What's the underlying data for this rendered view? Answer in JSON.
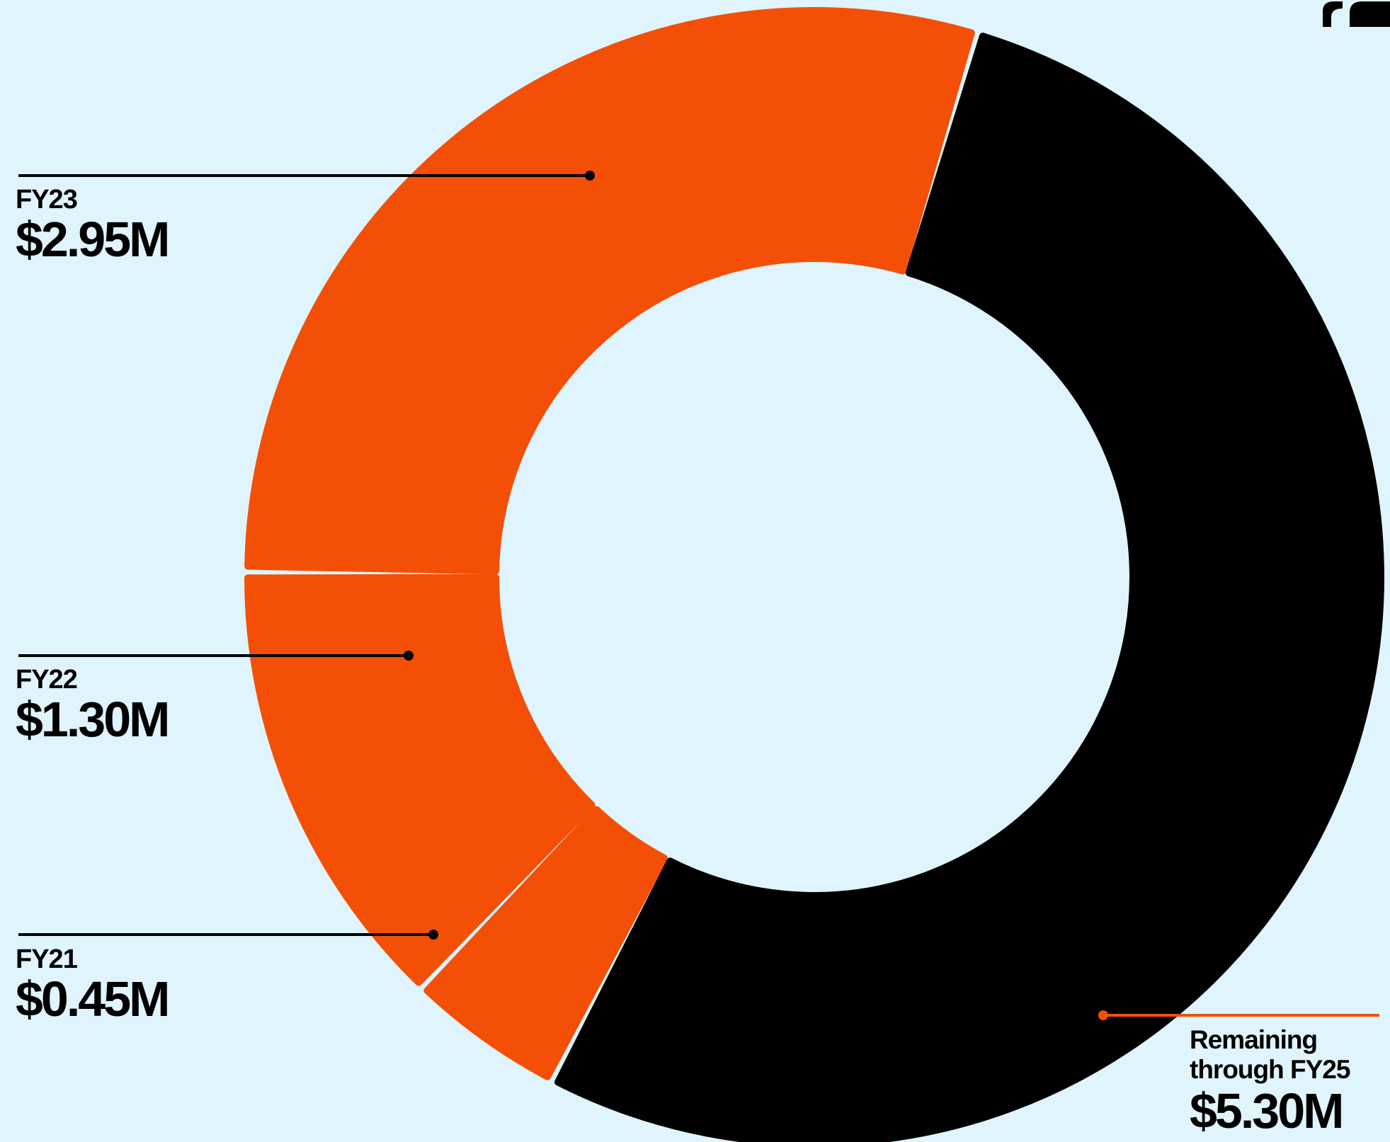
{
  "colors": {
    "background": "#dff4fd",
    "funded": "#f44f06",
    "remaining": "#000000",
    "leader": "#000000",
    "remaining_leader": "#f44f06"
  },
  "chart_data": {
    "type": "donut",
    "unit": "$M",
    "total": 10.0,
    "slices": [
      {
        "category": "FY21",
        "value": 0.45,
        "display": "$0.45M",
        "color": "#f44f06"
      },
      {
        "category": "FY22",
        "value": 1.3,
        "display": "$1.30M",
        "color": "#f44f06"
      },
      {
        "category": "FY23",
        "value": 2.95,
        "display": "$2.95M",
        "color": "#f44f06"
      },
      {
        "category": "Remaining through FY25",
        "value": 5.3,
        "display": "$5.30M",
        "color": "#000000"
      }
    ]
  },
  "labels": {
    "fy23": {
      "year": "FY23",
      "value": "$2.95M"
    },
    "fy22": {
      "year": "FY22",
      "value": "$1.30M"
    },
    "fy21": {
      "year": "FY21",
      "value": "$0.45M"
    },
    "remaining": {
      "line1": "Remaining",
      "line2": "through FY25",
      "value": "$5.30M"
    }
  }
}
